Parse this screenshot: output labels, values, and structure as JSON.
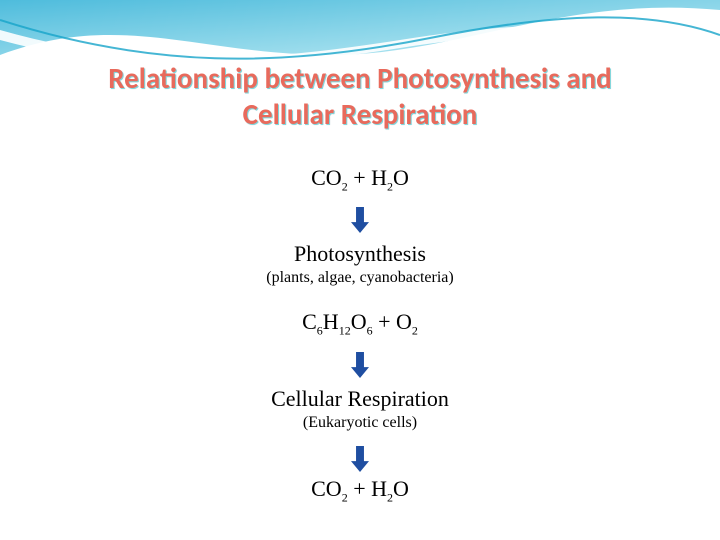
{
  "decor": {
    "wave_gradient_start": "#2fb0d6",
    "wave_gradient_end": "#b4e8f2",
    "wave_line_color": "#16a4c9",
    "background_color": "#ffffff"
  },
  "title": {
    "line1": "Relationship between Photosynthesis and",
    "line2": "Cellular Respiration",
    "color": "#e86a5c",
    "shadow_color": "#7fd6dc",
    "fontsize": 29
  },
  "flow": {
    "text_color": "#000000",
    "arrow_color": "#1f4ea1",
    "arrow_width": 18,
    "arrow_height": 26,
    "steps": [
      {
        "type": "formula",
        "html": "CO<sub>2</sub> + H<sub>2</sub>O"
      },
      {
        "type": "arrow"
      },
      {
        "type": "process",
        "name": "Photosynthesis",
        "note": "(plants, algae, cyanobacteria)"
      },
      {
        "type": "gap"
      },
      {
        "type": "formula",
        "html": "C<sub>6</sub>H<sub>12</sub>O<sub>6</sub> + O<sub>2</sub>"
      },
      {
        "type": "arrow"
      },
      {
        "type": "process",
        "name": "Cellular Respiration",
        "note": "(Eukaryotic cells)"
      },
      {
        "type": "arrow"
      },
      {
        "type": "formula",
        "html": "CO<sub>2</sub> + H<sub>2</sub>O"
      }
    ]
  }
}
